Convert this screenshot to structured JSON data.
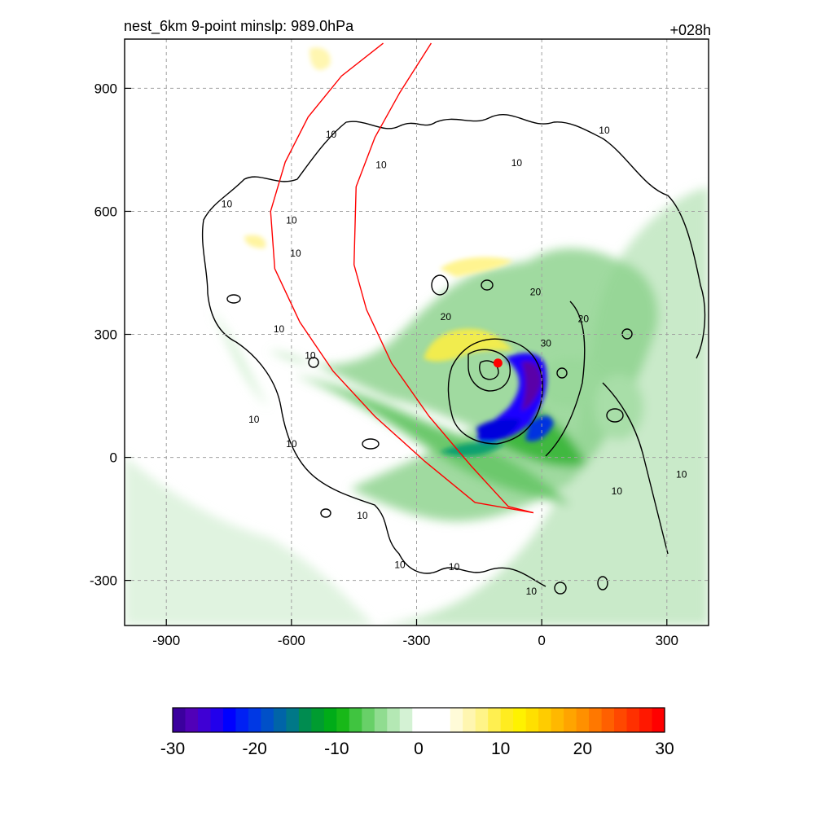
{
  "chart_data": {
    "type": "heatmap",
    "title_left": "nest_6km  9-point minslp: 989.0hPa",
    "title_right": "+028h",
    "xlim": [
      -1000,
      400
    ],
    "ylim": [
      -410,
      1020
    ],
    "x_ticks": [
      -900,
      -600,
      -300,
      0,
      300
    ],
    "y_ticks": [
      900,
      600,
      300,
      0,
      -300
    ],
    "grid": true,
    "grid_style": "dashed",
    "storm_center": {
      "x": -105,
      "y": 230,
      "color": "#ff0000"
    },
    "contour_level_labels": [
      "10",
      "20",
      "30"
    ],
    "contour_label_marks": [
      {
        "x": -60,
        "y": 710,
        "text": "10"
      },
      {
        "x": 150,
        "y": 790,
        "text": "10"
      },
      {
        "x": -755,
        "y": 610,
        "text": "10"
      },
      {
        "x": -600,
        "y": 570,
        "text": "10"
      },
      {
        "x": -590,
        "y": 490,
        "text": "10"
      },
      {
        "x": -505,
        "y": 780,
        "text": "10"
      },
      {
        "x": -385,
        "y": 705,
        "text": "10"
      },
      {
        "x": -630,
        "y": 305,
        "text": "10"
      },
      {
        "x": -555,
        "y": 240,
        "text": "10"
      },
      {
        "x": -690,
        "y": 85,
        "text": "10"
      },
      {
        "x": -600,
        "y": 25,
        "text": "10"
      },
      {
        "x": -430,
        "y": -150,
        "text": "10"
      },
      {
        "x": -340,
        "y": -270,
        "text": "10"
      },
      {
        "x": -210,
        "y": -275,
        "text": "10"
      },
      {
        "x": -25,
        "y": -335,
        "text": "10"
      },
      {
        "x": 180,
        "y": -90,
        "text": "10"
      },
      {
        "x": 335,
        "y": -50,
        "text": "10"
      },
      {
        "x": -230,
        "y": 335,
        "text": "20"
      },
      {
        "x": -15,
        "y": 395,
        "text": "20"
      },
      {
        "x": 100,
        "y": 330,
        "text": "20"
      },
      {
        "x": 10,
        "y": 270,
        "text": "30"
      }
    ],
    "red_track_outer": [
      [
        -380,
        1010
      ],
      [
        -480,
        930
      ],
      [
        -560,
        830
      ],
      [
        -615,
        720
      ],
      [
        -650,
        600
      ],
      [
        -640,
        460
      ],
      [
        -580,
        330
      ],
      [
        -500,
        210
      ],
      [
        -400,
        100
      ],
      [
        -280,
        -10
      ],
      [
        -160,
        -110
      ],
      [
        -20,
        -135
      ]
    ],
    "red_track_inner": [
      [
        -265,
        1010
      ],
      [
        -340,
        890
      ],
      [
        -400,
        780
      ],
      [
        -445,
        660
      ],
      [
        -450,
        470
      ],
      [
        -420,
        360
      ],
      [
        -360,
        230
      ],
      [
        -270,
        100
      ],
      [
        -170,
        -20
      ],
      [
        -80,
        -120
      ],
      [
        -20,
        -135
      ]
    ],
    "colorbar": {
      "ticks": [
        "-30",
        "-20",
        "-10",
        "0",
        "10",
        "20",
        "30"
      ],
      "range": [
        -30,
        30
      ],
      "colors": [
        "#3b009e",
        "#5100b8",
        "#3f00d4",
        "#2200ec",
        "#0000ff",
        "#0020f4",
        "#0038e4",
        "#0050c8",
        "#0064a8",
        "#007888",
        "#008c50",
        "#009c30",
        "#00ac18",
        "#18b818",
        "#40c440",
        "#68d068",
        "#90dc90",
        "#b4e8b4",
        "#d4f2d4",
        "#ffffff",
        "#ffffff",
        "#ffffff",
        "#fffbd8",
        "#fff6b0",
        "#fff488",
        "#ffef50",
        "#ffec20",
        "#fff200",
        "#ffe000",
        "#ffcc00",
        "#ffb800",
        "#ffa400",
        "#ff9000",
        "#ff7800",
        "#ff6000",
        "#ff4800",
        "#ff3000",
        "#ff1800",
        "#ff0000"
      ]
    }
  }
}
